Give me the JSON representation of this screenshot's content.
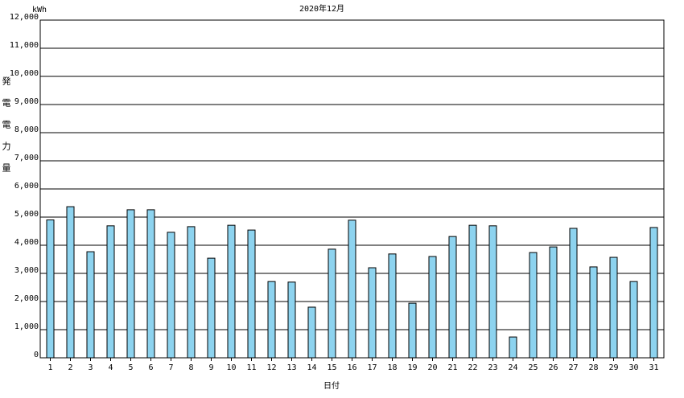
{
  "chart_data": {
    "type": "bar",
    "title": "2020年12月",
    "y_unit": "kWh",
    "y_label": "発電電力量",
    "x_label": "日付",
    "categories": [
      "1",
      "2",
      "3",
      "4",
      "5",
      "6",
      "7",
      "8",
      "9",
      "10",
      "11",
      "12",
      "13",
      "14",
      "15",
      "16",
      "17",
      "18",
      "19",
      "20",
      "21",
      "22",
      "23",
      "24",
      "25",
      "26",
      "27",
      "28",
      "29",
      "30",
      "31"
    ],
    "values": [
      4900,
      5370,
      3770,
      4690,
      5260,
      5260,
      4460,
      4660,
      3540,
      4710,
      4540,
      2710,
      2690,
      1800,
      3860,
      4890,
      3200,
      3690,
      1940,
      3600,
      4310,
      4710,
      4690,
      740,
      3740,
      3940,
      4600,
      3230,
      3570,
      2710,
      4630
    ],
    "color": "#8dd3ef",
    "ylim": [
      0,
      12000
    ],
    "yticks": [
      0,
      {
        "value": 1000,
        "label": "1,000"
      },
      {
        "value": 2000,
        "label": "2,000"
      },
      {
        "value": 3000,
        "label": "3,000"
      },
      {
        "value": 4000,
        "label": "4,000"
      },
      {
        "value": 5000,
        "label": "5,000"
      },
      {
        "value": 6000,
        "label": "6,000"
      },
      {
        "value": 7000,
        "label": "7,000"
      },
      {
        "value": 8000,
        "label": "8,000"
      },
      {
        "value": 9000,
        "label": "9,000"
      },
      {
        "value": 10000,
        "label": "10,000"
      },
      {
        "value": 11000,
        "label": "11,000"
      },
      {
        "value": 12000,
        "label": "12,000"
      }
    ],
    "grid": true
  }
}
